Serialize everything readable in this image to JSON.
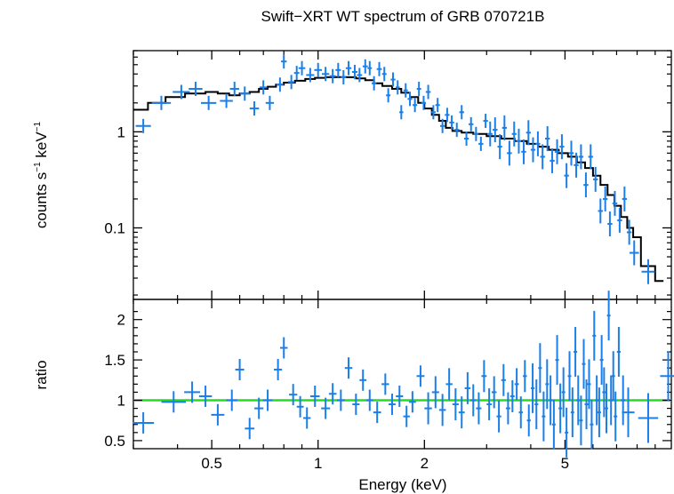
{
  "chart_data": [
    {
      "type": "scatter",
      "panel": "spectrum",
      "title": "Swift−XRT WT spectrum of GRB 070721B",
      "ylabel_base": "counts s",
      "ylabel_exp1": "−1",
      "ylabel_mid": " keV",
      "ylabel_exp2": "−1",
      "xscale": "log",
      "yscale": "log",
      "xlim": [
        0.3,
        10.0
      ],
      "ylim": [
        0.018,
        7.0
      ],
      "yticks": [
        {
          "v": 0.1,
          "label": "0.1"
        },
        {
          "v": 1,
          "label": "1"
        }
      ],
      "data_color": "#1a7fe8",
      "model_color": "#000000",
      "series": [
        {
          "kind": "data",
          "points": [
            [
              0.32,
              1.15
            ],
            [
              0.36,
              2.0
            ],
            [
              0.41,
              2.6
            ],
            [
              0.45,
              2.8
            ],
            [
              0.49,
              2.0
            ],
            [
              0.55,
              2.1
            ],
            [
              0.58,
              2.8
            ],
            [
              0.62,
              2.5
            ],
            [
              0.66,
              1.75
            ],
            [
              0.7,
              2.9
            ],
            [
              0.73,
              2.0
            ],
            [
              0.78,
              3.1
            ],
            [
              0.8,
              5.4
            ],
            [
              0.84,
              3.3
            ],
            [
              0.87,
              4.1
            ],
            [
              0.9,
              4.6
            ],
            [
              0.95,
              3.9
            ],
            [
              1.0,
              4.4
            ],
            [
              1.05,
              4.0
            ],
            [
              1.1,
              3.8
            ],
            [
              1.14,
              4.4
            ],
            [
              1.18,
              3.7
            ],
            [
              1.22,
              4.6
            ],
            [
              1.27,
              4.2
            ],
            [
              1.31,
              3.9
            ],
            [
              1.36,
              4.8
            ],
            [
              1.4,
              4.6
            ],
            [
              1.44,
              3.2
            ],
            [
              1.49,
              4.5
            ],
            [
              1.54,
              4.0
            ],
            [
              1.58,
              2.4
            ],
            [
              1.63,
              3.5
            ],
            [
              1.68,
              2.9
            ],
            [
              1.72,
              1.6
            ],
            [
              1.77,
              2.7
            ],
            [
              1.82,
              2.2
            ],
            [
              1.88,
              1.9
            ],
            [
              1.93,
              2.8
            ],
            [
              1.99,
              2.0
            ],
            [
              2.05,
              2.6
            ],
            [
              2.12,
              1.6
            ],
            [
              2.18,
              1.9
            ],
            [
              2.25,
              1.15
            ],
            [
              2.32,
              1.5
            ],
            [
              2.39,
              1.25
            ],
            [
              2.47,
              1.05
            ],
            [
              2.55,
              1.6
            ],
            [
              2.63,
              0.85
            ],
            [
              2.71,
              1.2
            ],
            [
              2.8,
              0.95
            ],
            [
              2.89,
              0.75
            ],
            [
              2.98,
              1.3
            ],
            [
              3.07,
              0.95
            ],
            [
              3.17,
              1.05
            ],
            [
              3.27,
              0.7
            ],
            [
              3.37,
              1.1
            ],
            [
              3.48,
              0.6
            ],
            [
              3.59,
              0.95
            ],
            [
              3.7,
              0.8
            ],
            [
              3.82,
              0.62
            ],
            [
              3.94,
              0.98
            ],
            [
              4.06,
              0.65
            ],
            [
              4.19,
              0.75
            ],
            [
              4.32,
              0.55
            ],
            [
              4.46,
              0.85
            ],
            [
              4.6,
              0.5
            ],
            [
              4.75,
              0.62
            ],
            [
              4.9,
              0.7
            ],
            [
              5.05,
              0.35
            ],
            [
              5.21,
              0.6
            ],
            [
              5.38,
              0.45
            ],
            [
              5.55,
              0.55
            ],
            [
              5.73,
              0.28
            ],
            [
              5.91,
              0.55
            ],
            [
              6.1,
              0.32
            ],
            [
              6.3,
              0.15
            ],
            [
              6.5,
              0.2
            ],
            [
              6.7,
              0.11
            ],
            [
              6.92,
              0.18
            ],
            [
              7.14,
              0.12
            ],
            [
              7.37,
              0.2
            ],
            [
              7.6,
              0.09
            ],
            [
              7.85,
              0.055
            ],
            [
              8.6,
              0.035
            ]
          ]
        },
        {
          "kind": "model",
          "step": [
            [
              0.3,
              1.7
            ],
            [
              0.33,
              2.0
            ],
            [
              0.37,
              2.3
            ],
            [
              0.42,
              2.5
            ],
            [
              0.48,
              2.6
            ],
            [
              0.52,
              2.5
            ],
            [
              0.56,
              2.4
            ],
            [
              0.6,
              2.5
            ],
            [
              0.64,
              2.6
            ],
            [
              0.68,
              2.8
            ],
            [
              0.72,
              2.95
            ],
            [
              0.76,
              3.1
            ],
            [
              0.8,
              3.25
            ],
            [
              0.86,
              3.4
            ],
            [
              0.92,
              3.55
            ],
            [
              0.98,
              3.65
            ],
            [
              1.05,
              3.7
            ],
            [
              1.12,
              3.72
            ],
            [
              1.2,
              3.7
            ],
            [
              1.28,
              3.6
            ],
            [
              1.36,
              3.45
            ],
            [
              1.44,
              3.2
            ],
            [
              1.52,
              3.0
            ],
            [
              1.62,
              2.8
            ],
            [
              1.72,
              2.55
            ],
            [
              1.82,
              2.3
            ],
            [
              1.92,
              2.0
            ],
            [
              2.0,
              1.75
            ],
            [
              2.1,
              1.5
            ],
            [
              2.2,
              1.3
            ],
            [
              2.3,
              1.1
            ],
            [
              2.4,
              1.02
            ],
            [
              2.55,
              0.98
            ],
            [
              2.75,
              0.95
            ],
            [
              3.0,
              0.9
            ],
            [
              3.3,
              0.85
            ],
            [
              3.6,
              0.8
            ],
            [
              3.9,
              0.75
            ],
            [
              4.2,
              0.7
            ],
            [
              4.5,
              0.65
            ],
            [
              4.8,
              0.6
            ],
            [
              5.1,
              0.55
            ],
            [
              5.4,
              0.48
            ],
            [
              5.7,
              0.42
            ],
            [
              6.0,
              0.35
            ],
            [
              6.3,
              0.28
            ],
            [
              6.6,
              0.22
            ],
            [
              6.9,
              0.17
            ],
            [
              7.2,
              0.13
            ],
            [
              7.5,
              0.1
            ],
            [
              7.8,
              0.08
            ],
            [
              8.2,
              0.04
            ],
            [
              9.0,
              0.028
            ],
            [
              9.5,
              0.028
            ]
          ]
        }
      ]
    },
    {
      "type": "scatter",
      "panel": "ratio",
      "xlabel": "Energy (keV)",
      "ylabel": "ratio",
      "xscale": "log",
      "yscale": "linear",
      "xlim": [
        0.3,
        10.0
      ],
      "ylim": [
        0.4,
        2.25
      ],
      "xticks": [
        {
          "v": 0.5,
          "label": "0.5"
        },
        {
          "v": 1,
          "label": "1"
        },
        {
          "v": 2,
          "label": "2"
        },
        {
          "v": 5,
          "label": "5"
        }
      ],
      "yticks": [
        {
          "v": 0.5,
          "label": "0.5"
        },
        {
          "v": 1,
          "label": "1"
        },
        {
          "v": 1.5,
          "label": "1.5"
        },
        {
          "v": 2,
          "label": "2"
        }
      ],
      "reference_line": 1.0,
      "reference_color": "#22dd22",
      "data_color": "#1a7fe8",
      "series": [
        {
          "kind": "data",
          "points": [
            [
              0.32,
              0.72
            ],
            [
              0.39,
              0.98
            ],
            [
              0.44,
              1.1
            ],
            [
              0.48,
              1.05
            ],
            [
              0.52,
              0.82
            ],
            [
              0.57,
              1.0
            ],
            [
              0.6,
              1.38
            ],
            [
              0.64,
              0.65
            ],
            [
              0.68,
              0.9
            ],
            [
              0.72,
              1.0
            ],
            [
              0.77,
              1.38
            ],
            [
              0.8,
              1.65
            ],
            [
              0.85,
              1.07
            ],
            [
              0.89,
              0.92
            ],
            [
              0.93,
              0.78
            ],
            [
              0.98,
              1.05
            ],
            [
              1.05,
              0.9
            ],
            [
              1.1,
              1.08
            ],
            [
              1.16,
              1.0
            ],
            [
              1.22,
              1.4
            ],
            [
              1.28,
              0.95
            ],
            [
              1.34,
              1.25
            ],
            [
              1.4,
              1.0
            ],
            [
              1.47,
              0.85
            ],
            [
              1.55,
              1.2
            ],
            [
              1.62,
              0.95
            ],
            [
              1.7,
              1.05
            ],
            [
              1.78,
              0.8
            ],
            [
              1.85,
              0.98
            ],
            [
              1.95,
              1.3
            ],
            [
              2.05,
              0.9
            ],
            [
              2.15,
              1.1
            ],
            [
              2.25,
              0.88
            ],
            [
              2.35,
              1.2
            ],
            [
              2.45,
              0.95
            ],
            [
              2.55,
              0.85
            ],
            [
              2.65,
              1.15
            ],
            [
              2.75,
              1.0
            ],
            [
              2.85,
              0.9
            ],
            [
              2.95,
              1.3
            ],
            [
              3.05,
              0.95
            ],
            [
              3.15,
              1.1
            ],
            [
              3.25,
              0.8
            ],
            [
              3.35,
              1.25
            ],
            [
              3.45,
              0.9
            ],
            [
              3.55,
              1.05
            ],
            [
              3.65,
              1.2
            ],
            [
              3.75,
              0.85
            ],
            [
              3.85,
              1.3
            ],
            [
              3.95,
              0.75
            ],
            [
              4.05,
              1.15
            ],
            [
              4.15,
              0.95
            ],
            [
              4.25,
              1.4
            ],
            [
              4.35,
              0.8
            ],
            [
              4.45,
              1.2
            ],
            [
              4.55,
              1.0
            ],
            [
              4.65,
              0.7
            ],
            [
              4.75,
              1.5
            ],
            [
              4.85,
              0.9
            ],
            [
              4.95,
              1.1
            ],
            [
              5.05,
              0.6
            ],
            [
              5.15,
              1.3
            ],
            [
              5.25,
              0.85
            ],
            [
              5.35,
              1.6
            ],
            [
              5.45,
              1.0
            ],
            [
              5.55,
              0.75
            ],
            [
              5.65,
              1.45
            ],
            [
              5.75,
              0.95
            ],
            [
              5.85,
              1.2
            ],
            [
              5.95,
              0.7
            ],
            [
              6.05,
              1.8
            ],
            [
              6.15,
              1.0
            ],
            [
              6.25,
              0.85
            ],
            [
              6.35,
              1.5
            ],
            [
              6.45,
              1.1
            ],
            [
              6.55,
              0.9
            ],
            [
              6.65,
              2.05
            ],
            [
              6.75,
              1.0
            ],
            [
              6.85,
              1.3
            ],
            [
              6.95,
              0.8
            ],
            [
              7.1,
              1.6
            ],
            [
              7.3,
              1.0
            ],
            [
              7.55,
              0.85
            ],
            [
              8.6,
              0.78
            ],
            [
              9.8,
              1.3
            ]
          ]
        }
      ]
    }
  ]
}
